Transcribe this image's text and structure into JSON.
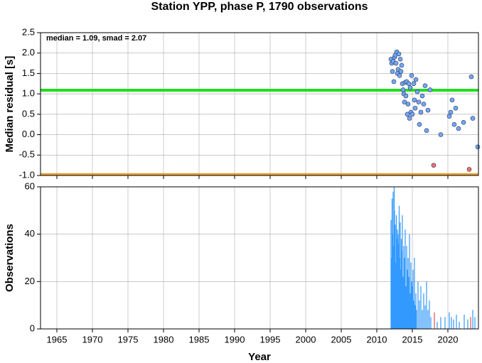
{
  "chart_data": [
    {
      "type": "scatter",
      "title": "Station YPP, phase P, 1790 observations",
      "y_label": "Median residual [s]",
      "annotation": "median = 1.09, smad = 2.07",
      "xlim": [
        1962.7,
        2024.3
      ],
      "xticks": [
        1965,
        1970,
        1975,
        1980,
        1985,
        1990,
        1995,
        2000,
        2005,
        2010,
        2015,
        2020
      ],
      "ylim": [
        -1.0,
        2.5
      ],
      "yticks": [
        {
          "value": -1.0,
          "label": "-1.0"
        },
        -0.5,
        {
          "value": 0.0,
          "label": "0.0"
        },
        0.5,
        {
          "value": 1.0,
          "label": "1.0"
        },
        1.5,
        {
          "value": 2.0,
          "label": "2.0"
        },
        2.5
      ],
      "grid": true,
      "hlines": [
        {
          "value": 1.09,
          "color": "#22dd22"
        },
        {
          "value": -0.97,
          "color": "#e8a030"
        }
      ],
      "series": [
        {
          "color": "#6fa8f5",
          "x": [
            2012.0,
            2012.1,
            2012.2,
            2012.3,
            2012.4,
            2012.5,
            2012.6,
            2012.7,
            2012.8,
            2012.9,
            2013.0,
            2013.1,
            2013.2,
            2013.3,
            2013.4,
            2013.5,
            2013.6,
            2013.7,
            2013.8,
            2013.9,
            2014.0,
            2014.1,
            2014.2,
            2014.3,
            2014.4,
            2014.5,
            2014.6,
            2014.7,
            2014.8,
            2014.9,
            2015.0,
            2015.2,
            2015.3,
            2015.4,
            2015.5,
            2015.7,
            2015.9,
            2016.0,
            2016.2,
            2016.4,
            2016.6,
            2016.8,
            2017.0,
            2017.2,
            2017.5,
            2019.0,
            2020.2,
            2020.4,
            2020.6,
            2020.9,
            2021.1,
            2021.5,
            2022.2,
            2023.3,
            2023.5,
            2024.2
          ],
          "values": [
            1.85,
            1.75,
            1.55,
            1.8,
            1.3,
            1.9,
            1.95,
            1.75,
            2.03,
            1.5,
            1.6,
            1.98,
            1.45,
            1.85,
            1.55,
            1.7,
            1.25,
            1.1,
            1.0,
            0.8,
            1.28,
            0.95,
            1.3,
            0.5,
            0.75,
            1.25,
            0.4,
            1.15,
            0.55,
            1.45,
            0.5,
            1.25,
            0.85,
            0.65,
            1.35,
            1.05,
            0.8,
            0.25,
            0.55,
            0.95,
            0.75,
            1.2,
            0.1,
            0.6,
            1.1,
            0.0,
            0.45,
            0.55,
            0.85,
            0.25,
            0.65,
            0.15,
            0.3,
            1.42,
            0.4,
            -0.3
          ]
        },
        {
          "color": "#f07070",
          "x": [
            2018.0,
            2023.0
          ],
          "values": [
            -0.75,
            -0.85
          ]
        }
      ]
    },
    {
      "type": "bar",
      "y_label": "Observations",
      "x_label": "Year",
      "xlim": [
        1962.7,
        2024.3
      ],
      "xticks": [
        1965,
        1970,
        1975,
        1980,
        1985,
        1990,
        1995,
        2000,
        2005,
        2010,
        2015,
        2020
      ],
      "ylim": [
        0,
        60
      ],
      "yticks": [
        0,
        20,
        40,
        60
      ],
      "grid": true,
      "series": [
        {
          "color": "#3399ff",
          "x": [
            2012.0,
            2012.1,
            2012.15,
            2012.2,
            2012.3,
            2012.35,
            2012.45,
            2012.5,
            2012.6,
            2012.65,
            2012.75,
            2012.8,
            2012.9,
            2013.0,
            2013.05,
            2013.15,
            2013.2,
            2013.3,
            2013.4,
            2013.45,
            2013.55,
            2013.6,
            2013.7,
            2013.8,
            2013.9,
            2014.0,
            2014.1,
            2014.2,
            2014.3,
            2014.4,
            2014.5,
            2014.6,
            2014.7,
            2014.8,
            2014.9,
            2015.0,
            2015.1,
            2015.2,
            2015.3,
            2015.4,
            2015.5,
            2015.6,
            2015.8,
            2016.0,
            2016.2,
            2016.4,
            2016.6,
            2016.8,
            2017.0,
            2017.2,
            2017.4,
            2017.6,
            2018.5,
            2019.0,
            2019.6,
            2020.2,
            2020.5,
            2020.8,
            2021.2,
            2021.6,
            2022.3,
            2022.8,
            2023.5,
            2023.8
          ],
          "values": [
            46,
            30,
            55,
            40,
            58,
            35,
            60,
            50,
            44,
            28,
            48,
            38,
            42,
            40,
            36,
            52,
            30,
            45,
            25,
            38,
            33,
            48,
            22,
            35,
            30,
            42,
            18,
            35,
            25,
            30,
            22,
            40,
            15,
            28,
            20,
            18,
            25,
            12,
            30,
            10,
            15,
            8,
            20,
            12,
            18,
            8,
            15,
            10,
            20,
            8,
            12,
            5,
            3,
            5,
            5,
            7,
            5,
            4,
            6,
            3,
            6,
            4,
            8,
            5
          ]
        },
        {
          "color": "#e05050",
          "x": [
            2018.1,
            2023.2
          ],
          "values": [
            7,
            5
          ]
        }
      ]
    }
  ]
}
